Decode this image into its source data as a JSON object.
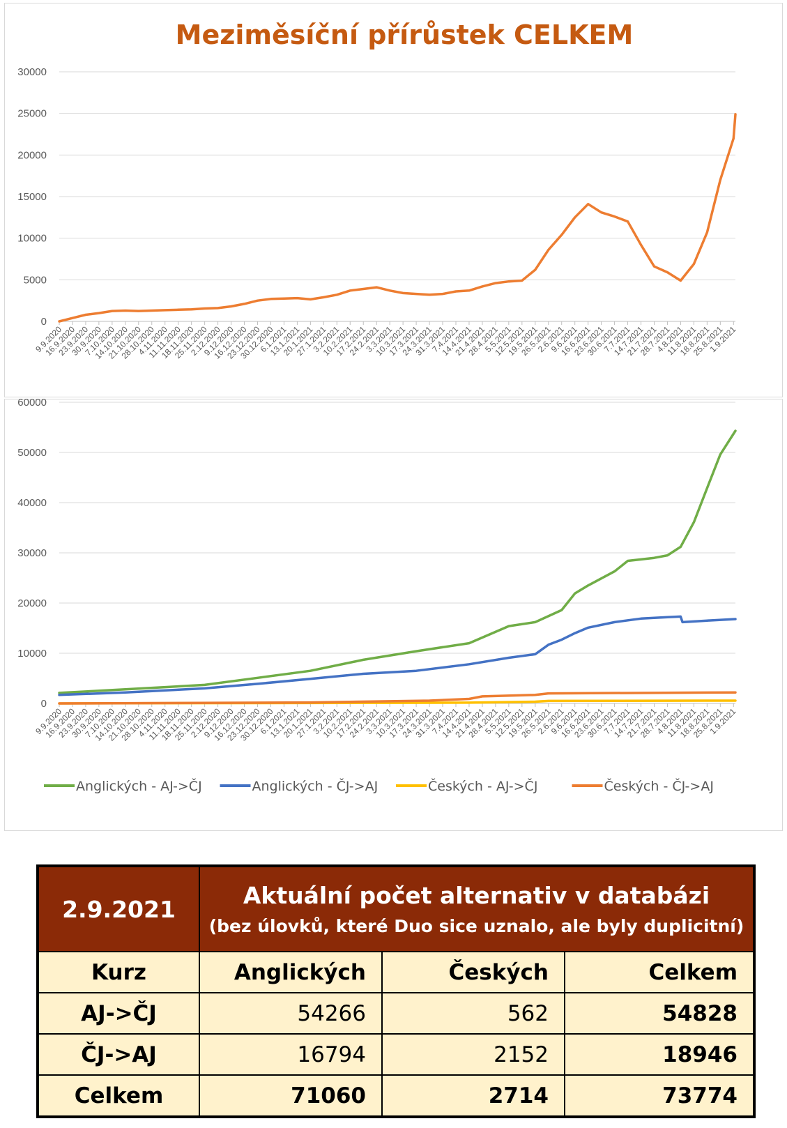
{
  "chart_data": [
    {
      "type": "line",
      "title": "Meziměsíční přírůstek CELKEM",
      "ylim": [
        0,
        30000
      ],
      "yticks": [
        "0",
        "5000",
        "10000",
        "15000",
        "20000",
        "25000",
        "30000"
      ],
      "xtick_labels": [
        "9.9.2020",
        "16.9.2020",
        "23.9.2020",
        "30.9.2020",
        "7.10.2020",
        "14.10.2020",
        "21.10.2020",
        "28.10.2020",
        "4.11.2020",
        "11.11.2020",
        "18.11.2020",
        "25.11.2020",
        "2.12.2020",
        "9.12.2020",
        "16.12.2020",
        "23.12.2020",
        "30.12.2020",
        "6.1.2021",
        "13.1.2021",
        "20.1.2021",
        "27.1.2021",
        "3.2.2021",
        "10.2.2021",
        "17.2.2021",
        "24.2.2021",
        "3.3.2021",
        "10.3.2021",
        "17.3.2021",
        "24.3.2021",
        "31.3.2021",
        "7.4.2021",
        "14.4.2021",
        "21.4.2021",
        "28.4.2021",
        "5.5.2021",
        "12.5.2021",
        "19.5.2021",
        "26.5.2021",
        "2.6.2021",
        "9.6.2021",
        "16.6.2021",
        "23.6.2021",
        "30.6.2021",
        "7.7.2021",
        "14.7.2021",
        "21.7.2021",
        "28.7.2021",
        "4.8.2021",
        "11.8.2021",
        "18.8.2021",
        "25.8.2021",
        "1.9.2021"
      ],
      "grid": true,
      "series": [
        {
          "color": "#ed7d31",
          "x": [
            "9.9.2020",
            "16.9.2020",
            "23.9.2020",
            "30.9.2020",
            "7.10.2020",
            "14.10.2020",
            "21.10.2020",
            "28.10.2020",
            "4.11.2020",
            "11.11.2020",
            "18.11.2020",
            "25.11.2020",
            "2.12.2020",
            "9.12.2020",
            "16.12.2020",
            "23.12.2020",
            "30.12.2020",
            "6.1.2021",
            "13.1.2021",
            "20.1.2021",
            "27.1.2021",
            "3.2.2021",
            "10.2.2021",
            "17.2.2021",
            "24.2.2021",
            "3.3.2021",
            "10.3.2021",
            "17.3.2021",
            "24.3.2021",
            "31.3.2021",
            "7.4.2021",
            "14.4.2021",
            "21.4.2021",
            "28.4.2021",
            "5.5.2021",
            "12.5.2021",
            "19.5.2021",
            "26.5.2021",
            "2.6.2021",
            "9.6.2021",
            "16.6.2021",
            "23.6.2021",
            "30.6.2021",
            "7.7.2021",
            "14.7.2021",
            "21.7.2021",
            "28.7.2021",
            "4.8.2021",
            "11.8.2021",
            "18.8.2021",
            "25.8.2021",
            "1.9.2021",
            "2.9.2021"
          ],
          "values": [
            0,
            400,
            800,
            1000,
            1250,
            1300,
            1250,
            1300,
            1350,
            1400,
            1450,
            1550,
            1600,
            1800,
            2100,
            2500,
            2700,
            2750,
            2800,
            2650,
            2900,
            3200,
            3700,
            3900,
            4100,
            3700,
            3400,
            3300,
            3200,
            3300,
            3600,
            3700,
            4200,
            4600,
            4800,
            4900,
            6200,
            8600,
            10400,
            12500,
            14100,
            13100,
            12600,
            12000,
            9200,
            6600,
            5900,
            4900,
            6900,
            10700,
            17000,
            22000,
            24900
          ]
        }
      ]
    },
    {
      "type": "line",
      "ylim": [
        0,
        60000
      ],
      "yticks": [
        "0",
        "10000",
        "20000",
        "30000",
        "40000",
        "50000",
        "60000"
      ],
      "xtick_labels": [
        "9.9.2020",
        "16.9.2020",
        "23.9.2020",
        "30.9.2020",
        "7.10.2020",
        "14.10.2020",
        "21.10.2020",
        "28.10.2020",
        "4.11.2020",
        "11.11.2020",
        "18.11.2020",
        "25.11.2020",
        "2.12.2020",
        "9.12.2020",
        "16.12.2020",
        "23.12.2020",
        "30.12.2020",
        "6.1.2021",
        "13.1.2021",
        "20.1.2021",
        "27.1.2021",
        "3.2.2021",
        "10.2.2021",
        "17.2.2021",
        "24.2.2021",
        "3.3.2021",
        "10.3.2021",
        "17.3.2021",
        "24.3.2021",
        "31.3.2021",
        "7.4.2021",
        "14.4.2021",
        "21.4.2021",
        "28.4.2021",
        "5.5.2021",
        "12.5.2021",
        "19.5.2021",
        "26.5.2021",
        "2.6.2021",
        "9.6.2021",
        "16.6.2021",
        "23.6.2021",
        "30.6.2021",
        "7.7.2021",
        "14.7.2021",
        "21.7.2021",
        "28.7.2021",
        "4.8.2021",
        "11.8.2021",
        "18.8.2021",
        "25.8.2021",
        "1.9.2021"
      ],
      "grid": true,
      "legend": "bottom",
      "series": [
        {
          "name": "Anglických - AJ->ČJ",
          "color": "#70ad47",
          "x": [
            "9.9.2020",
            "14.10.2020",
            "25.11.2020",
            "23.12.2020",
            "20.1.2021",
            "17.2.2021",
            "17.3.2021",
            "14.4.2021",
            "5.5.2021",
            "19.5.2021",
            "2.6.2021",
            "9.6.2021",
            "16.6.2021",
            "30.6.2021",
            "7.7.2021",
            "21.7.2021",
            "28.7.2021",
            "4.8.2021",
            "11.8.2021",
            "18.8.2021",
            "25.8.2021",
            "2.9.2021"
          ],
          "values": [
            2100,
            2800,
            3700,
            5100,
            6500,
            8700,
            10400,
            12000,
            15400,
            16200,
            18600,
            21900,
            23500,
            26300,
            28400,
            29000,
            29500,
            31200,
            36100,
            42900,
            49600,
            54300
          ]
        },
        {
          "name": "Anglických - ČJ->AJ",
          "color": "#4472c4",
          "x": [
            "9.9.2020",
            "14.10.2020",
            "25.11.2020",
            "23.12.2020",
            "20.1.2021",
            "17.2.2021",
            "17.3.2021",
            "14.4.2021",
            "5.5.2021",
            "19.5.2021",
            "26.5.2021",
            "2.6.2021",
            "9.6.2021",
            "16.6.2021",
            "30.6.2021",
            "14.7.2021",
            "28.7.2021",
            "4.8.2021",
            "5.8.2021",
            "18.8.2021",
            "2.9.2021"
          ],
          "values": [
            1700,
            2200,
            3000,
            3900,
            4900,
            5900,
            6500,
            7800,
            9100,
            9800,
            11700,
            12700,
            14000,
            15100,
            16200,
            16900,
            17200,
            17300,
            16200,
            16500,
            16800
          ]
        },
        {
          "name": "Českých - AJ->ČJ",
          "color": "#ffc000",
          "x": [
            "9.9.2020",
            "14.4.2021",
            "19.5.2021",
            "26.5.2021",
            "2.9.2021"
          ],
          "values": [
            0,
            150,
            350,
            500,
            562
          ]
        },
        {
          "name": "Českých - ČJ->AJ",
          "color": "#ed7d31",
          "x": [
            "9.9.2020",
            "20.1.2021",
            "24.3.2021",
            "14.4.2021",
            "21.4.2021",
            "19.5.2021",
            "26.5.2021",
            "2.9.2021"
          ],
          "values": [
            0,
            200,
            550,
            900,
            1400,
            1700,
            2000,
            2200
          ]
        }
      ]
    }
  ],
  "table": {
    "date": "2.9.2021",
    "title": "Aktuální počet alternativ v databázi",
    "subtitle": "(bez úlovků, které Duo sice uznalo, ale byly duplicitní)",
    "headers": [
      "Kurz",
      "Anglických",
      "Českých",
      "Celkem"
    ],
    "rows": [
      [
        "AJ->ČJ",
        "54266",
        "562",
        "54828"
      ],
      [
        "ČJ->AJ",
        "16794",
        "2152",
        "18946"
      ],
      [
        "Celkem",
        "71060",
        "2714",
        "73774"
      ]
    ]
  }
}
